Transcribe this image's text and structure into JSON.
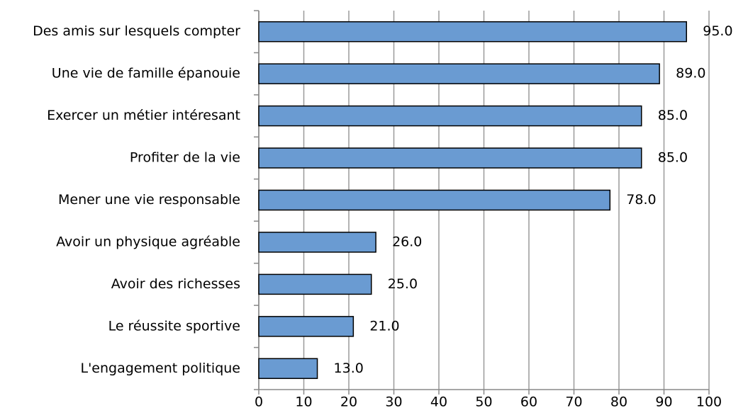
{
  "chart_data": {
    "type": "bar",
    "orientation": "horizontal",
    "categories": [
      "Des amis sur lesquels compter",
      "Une vie de famille épanouie",
      "Exercer un métier intéresant",
      "Profiter de la vie",
      "Mener une vie responsable",
      "Avoir un physique agréable",
      "Avoir des richesses",
      "Le réussite sportive",
      "L'engagement politique"
    ],
    "values": [
      95,
      89,
      85,
      85,
      78,
      26,
      25,
      21,
      13
    ],
    "value_labels": [
      "95.0",
      "89.0",
      "85.0",
      "85.0",
      "78.0",
      "26.0",
      "25.0",
      "21.0",
      "13.0"
    ],
    "color": "#6a9bd2",
    "xlim": [
      0,
      100
    ],
    "xticks": [
      0,
      10,
      20,
      30,
      40,
      50,
      60,
      70,
      80,
      90,
      100
    ],
    "grid": true
  }
}
